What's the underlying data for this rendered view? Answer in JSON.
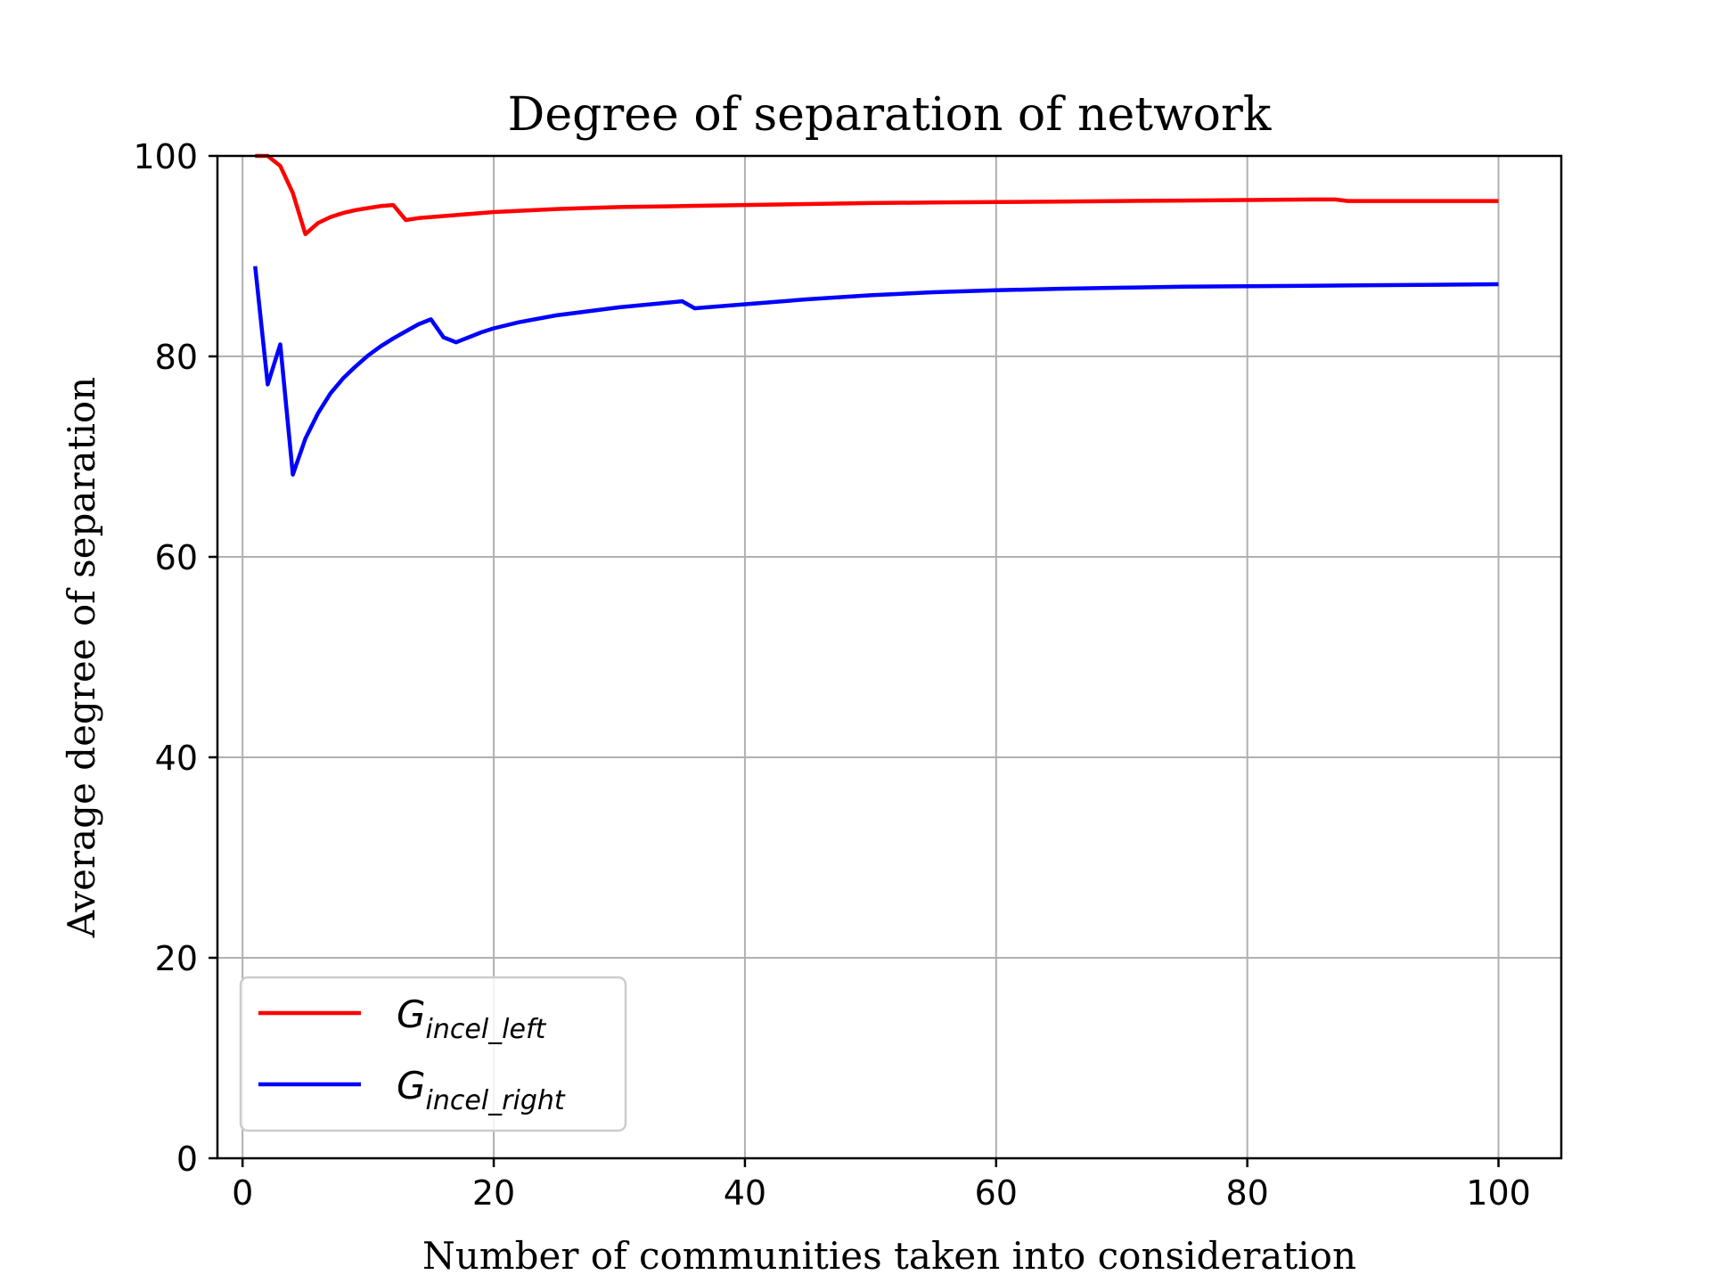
{
  "chart_data": {
    "type": "line",
    "title": "Degree of separation of network",
    "xlabel": "Number of communities taken into consideration",
    "ylabel": "Average degree of separation",
    "xlim": [
      -2,
      105
    ],
    "ylim": [
      0,
      100
    ],
    "xticks": [
      0,
      20,
      40,
      60,
      80,
      100
    ],
    "yticks": [
      0,
      20,
      40,
      60,
      80,
      100
    ],
    "grid": true,
    "legend_position": "lower-left",
    "series": [
      {
        "name": "G_incel_left",
        "name_main": "G",
        "name_sub": "incel_left",
        "color": "#ff0000",
        "x": [
          1,
          2,
          3,
          4,
          5,
          6,
          7,
          8,
          9,
          10,
          11,
          12,
          13,
          14,
          15,
          16,
          17,
          18,
          19,
          20,
          25,
          30,
          35,
          40,
          45,
          50,
          55,
          60,
          65,
          70,
          75,
          80,
          85,
          87,
          88,
          90,
          95,
          100
        ],
        "y": [
          100,
          100,
          99,
          96.3,
          92.2,
          93.3,
          93.9,
          94.3,
          94.6,
          94.8,
          95.0,
          95.1,
          93.6,
          93.8,
          93.9,
          94.0,
          94.1,
          94.2,
          94.3,
          94.4,
          94.7,
          94.9,
          95.0,
          95.1,
          95.2,
          95.3,
          95.35,
          95.4,
          95.45,
          95.5,
          95.55,
          95.6,
          95.65,
          95.65,
          95.5,
          95.5,
          95.5,
          95.5
        ]
      },
      {
        "name": "G_incel_right",
        "name_main": "G",
        "name_sub": "incel_right",
        "color": "#0000ff",
        "x": [
          1,
          2,
          3,
          4,
          5,
          6,
          7,
          8,
          9,
          10,
          11,
          12,
          13,
          14,
          15,
          16,
          17,
          18,
          19,
          20,
          22,
          25,
          30,
          35,
          36,
          40,
          45,
          50,
          55,
          60,
          65,
          70,
          75,
          80,
          85,
          90,
          95,
          100
        ],
        "y": [
          89,
          77.2,
          81.2,
          68.2,
          71.8,
          74.3,
          76.3,
          77.8,
          79.0,
          80.1,
          81.0,
          81.8,
          82.5,
          83.2,
          83.7,
          81.9,
          81.4,
          81.9,
          82.4,
          82.8,
          83.4,
          84.1,
          84.9,
          85.5,
          84.8,
          85.2,
          85.7,
          86.1,
          86.4,
          86.6,
          86.75,
          86.85,
          86.95,
          87.0,
          87.05,
          87.1,
          87.15,
          87.2
        ]
      }
    ]
  }
}
